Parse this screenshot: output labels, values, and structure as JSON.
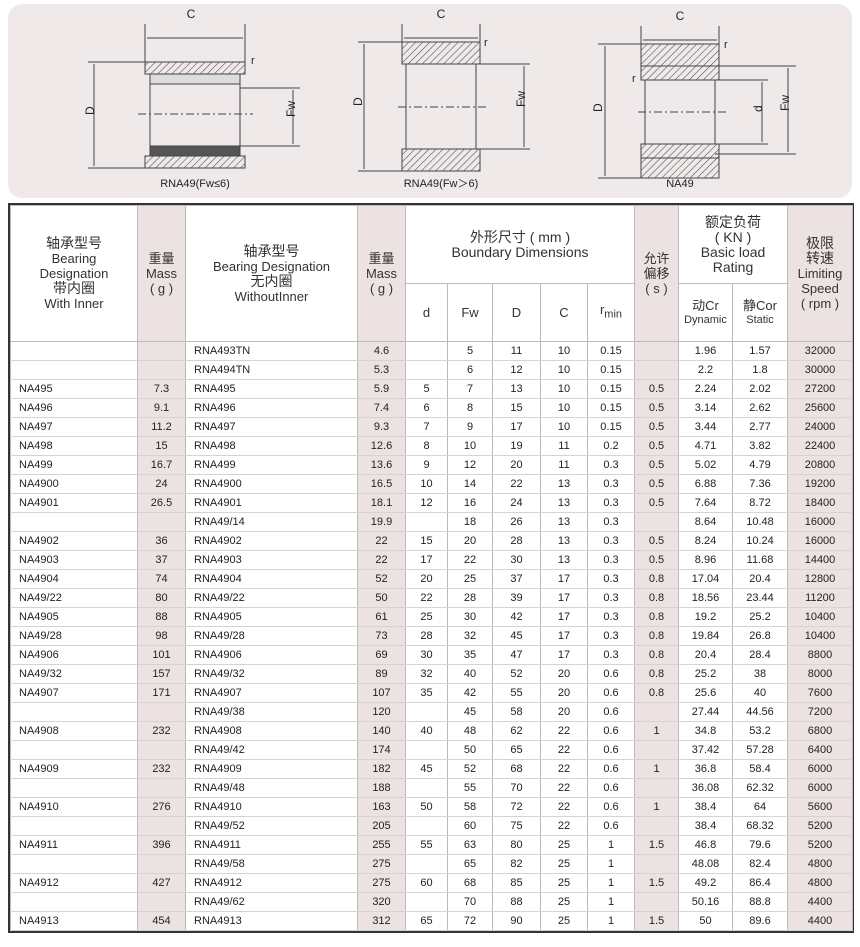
{
  "diagrams": [
    {
      "caption": "RNA49(Fw≤6)",
      "labels": {
        "c": "C",
        "d_outer": "D",
        "fw": "Fw",
        "r": "r"
      }
    },
    {
      "caption": "RNA49(Fw＞6)",
      "labels": {
        "c": "C",
        "d_outer": "D",
        "fw": "Fw",
        "r": "r"
      }
    },
    {
      "caption": "NA49",
      "labels": {
        "c": "C",
        "d_outer": "D",
        "fw": "Fw",
        "r": "r",
        "r2": "r",
        "d_inner": "d"
      }
    }
  ],
  "header": {
    "with_inner": {
      "cn": "轴承型号",
      "en1": "Bearing",
      "en2": "Designation",
      "cn2": "带内圈",
      "en3": "With Inner"
    },
    "mass1": {
      "cn": "重量",
      "en": "Mass",
      "unit": "( g )"
    },
    "without_inner": {
      "cn": "轴承型号",
      "en": "Bearing Designation",
      "cn2": "无内圈",
      "en2": "WithoutInner"
    },
    "mass2": {
      "cn": "重量",
      "en": "Mass",
      "unit": "( g )"
    },
    "boundary": {
      "cn": "外形尺寸 ( mm )",
      "en": "Boundary Dimensions",
      "cols": [
        "d",
        "Fw",
        "D",
        "C"
      ],
      "rmin": "r",
      "rmin_sub": "min"
    },
    "offset": {
      "cn1": "允许",
      "cn2": "偏移",
      "unit": "( s )"
    },
    "load": {
      "cn": "额定负荷",
      "unit": "( KN )",
      "en1": "Basic load",
      "en2": "Rating",
      "dyn_cn": "动Cr",
      "dyn_en": "Dynamic",
      "sta_cn": "静Cor",
      "sta_en": "Static"
    },
    "speed": {
      "cn1": "极限",
      "cn2": "转速",
      "en1": "Limiting",
      "en2": "Speed",
      "unit": "( rpm )"
    }
  },
  "rows": [
    [
      "",
      "",
      "RNA493TN",
      "4.6",
      "",
      "5",
      "11",
      "10",
      "0.15",
      "",
      "1.96",
      "1.57",
      "32000"
    ],
    [
      "",
      "",
      "RNA494TN",
      "5.3",
      "",
      "6",
      "12",
      "10",
      "0.15",
      "",
      "2.2",
      "1.8",
      "30000"
    ],
    [
      "NA495",
      "7.3",
      "RNA495",
      "5.9",
      "5",
      "7",
      "13",
      "10",
      "0.15",
      "0.5",
      "2.24",
      "2.02",
      "27200"
    ],
    [
      "NA496",
      "9.1",
      "RNA496",
      "7.4",
      "6",
      "8",
      "15",
      "10",
      "0.15",
      "0.5",
      "3.14",
      "2.62",
      "25600"
    ],
    [
      "NA497",
      "11.2",
      "RNA497",
      "9.3",
      "7",
      "9",
      "17",
      "10",
      "0.15",
      "0.5",
      "3.44",
      "2.77",
      "24000"
    ],
    [
      "NA498",
      "15",
      "RNA498",
      "12.6",
      "8",
      "10",
      "19",
      "11",
      "0.2",
      "0.5",
      "4.71",
      "3.82",
      "22400"
    ],
    [
      "NA499",
      "16.7",
      "RNA499",
      "13.6",
      "9",
      "12",
      "20",
      "11",
      "0.3",
      "0.5",
      "5.02",
      "4.79",
      "20800"
    ],
    [
      "NA4900",
      "24",
      "RNA4900",
      "16.5",
      "10",
      "14",
      "22",
      "13",
      "0.3",
      "0.5",
      "6.88",
      "7.36",
      "19200"
    ],
    [
      "NA4901",
      "26.5",
      "RNA4901",
      "18.1",
      "12",
      "16",
      "24",
      "13",
      "0.3",
      "0.5",
      "7.64",
      "8.72",
      "18400"
    ],
    [
      "",
      "",
      "RNA49/14",
      "19.9",
      "",
      "18",
      "26",
      "13",
      "0.3",
      "",
      "8.64",
      "10.48",
      "16000"
    ],
    [
      "NA4902",
      "36",
      "RNA4902",
      "22",
      "15",
      "20",
      "28",
      "13",
      "0.3",
      "0.5",
      "8.24",
      "10.24",
      "16000"
    ],
    [
      "NA4903",
      "37",
      "RNA4903",
      "22",
      "17",
      "22",
      "30",
      "13",
      "0.3",
      "0.5",
      "8.96",
      "11.68",
      "14400"
    ],
    [
      "NA4904",
      "74",
      "RNA4904",
      "52",
      "20",
      "25",
      "37",
      "17",
      "0.3",
      "0.8",
      "17.04",
      "20.4",
      "12800"
    ],
    [
      "NA49/22",
      "80",
      "RNA49/22",
      "50",
      "22",
      "28",
      "39",
      "17",
      "0.3",
      "0.8",
      "18.56",
      "23.44",
      "11200"
    ],
    [
      "NA4905",
      "88",
      "RNA4905",
      "61",
      "25",
      "30",
      "42",
      "17",
      "0.3",
      "0.8",
      "19.2",
      "25.2",
      "10400"
    ],
    [
      "NA49/28",
      "98",
      "RNA49/28",
      "73",
      "28",
      "32",
      "45",
      "17",
      "0.3",
      "0.8",
      "19.84",
      "26.8",
      "10400"
    ],
    [
      "NA4906",
      "101",
      "RNA4906",
      "69",
      "30",
      "35",
      "47",
      "17",
      "0.3",
      "0.8",
      "20.4",
      "28.4",
      "8800"
    ],
    [
      "NA49/32",
      "157",
      "RNA49/32",
      "89",
      "32",
      "40",
      "52",
      "20",
      "0.6",
      "0.8",
      "25.2",
      "38",
      "8000"
    ],
    [
      "NA4907",
      "171",
      "RNA4907",
      "107",
      "35",
      "42",
      "55",
      "20",
      "0.6",
      "0.8",
      "25.6",
      "40",
      "7600"
    ],
    [
      "",
      "",
      "RNA49/38",
      "120",
      "",
      "45",
      "58",
      "20",
      "0.6",
      "",
      "27.44",
      "44.56",
      "7200"
    ],
    [
      "NA4908",
      "232",
      "RNA4908",
      "140",
      "40",
      "48",
      "62",
      "22",
      "0.6",
      "1",
      "34.8",
      "53.2",
      "6800"
    ],
    [
      "",
      "",
      "RNA49/42",
      "174",
      "",
      "50",
      "65",
      "22",
      "0.6",
      "",
      "37.42",
      "57.28",
      "6400"
    ],
    [
      "NA4909",
      "232",
      "RNA4909",
      "182",
      "45",
      "52",
      "68",
      "22",
      "0.6",
      "1",
      "36.8",
      "58.4",
      "6000"
    ],
    [
      "",
      "",
      "RNA49/48",
      "188",
      "",
      "55",
      "70",
      "22",
      "0.6",
      "",
      "36.08",
      "62.32",
      "6000"
    ],
    [
      "NA4910",
      "276",
      "RNA4910",
      "163",
      "50",
      "58",
      "72",
      "22",
      "0.6",
      "1",
      "38.4",
      "64",
      "5600"
    ],
    [
      "",
      "",
      "RNA49/52",
      "205",
      "",
      "60",
      "75",
      "22",
      "0.6",
      "",
      "38.4",
      "68.32",
      "5200"
    ],
    [
      "NA4911",
      "396",
      "RNA4911",
      "255",
      "55",
      "63",
      "80",
      "25",
      "1",
      "1.5",
      "46.8",
      "79.6",
      "5200"
    ],
    [
      "",
      "",
      "RNA49/58",
      "275",
      "",
      "65",
      "82",
      "25",
      "1",
      "",
      "48.08",
      "82.4",
      "4800"
    ],
    [
      "NA4912",
      "427",
      "RNA4912",
      "275",
      "60",
      "68",
      "85",
      "25",
      "1",
      "1.5",
      "49.2",
      "86.4",
      "4800"
    ],
    [
      "",
      "",
      "RNA49/62",
      "320",
      "",
      "70",
      "88",
      "25",
      "1",
      "",
      "50.16",
      "88.8",
      "4400"
    ],
    [
      "NA4913",
      "454",
      "RNA4913",
      "312",
      "65",
      "72",
      "90",
      "25",
      "1",
      "1.5",
      "50",
      "89.6",
      "4400"
    ]
  ],
  "colors": {
    "panel": "#f0e9ea",
    "shade": "#ece2e2",
    "border": "#333333"
  }
}
